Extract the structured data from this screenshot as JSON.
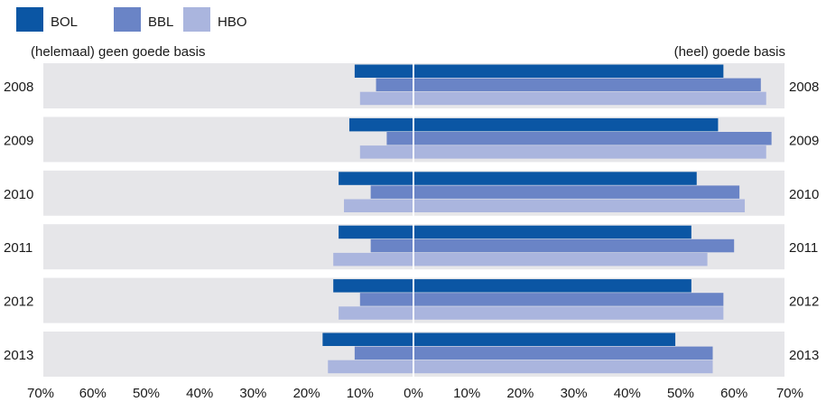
{
  "chart_data": {
    "type": "bar",
    "orientation": "horizontal-diverging",
    "left_label": "(helemaal) geen goede basis",
    "right_label": "(heel) goede basis",
    "categories": [
      "2008",
      "2009",
      "2010",
      "2011",
      "2012",
      "2013"
    ],
    "series": [
      {
        "name": "BOL",
        "color": "#0b56a4",
        "negative": [
          11,
          12,
          14,
          14,
          15,
          17
        ],
        "positive": [
          58,
          57,
          53,
          52,
          52,
          49
        ]
      },
      {
        "name": "BBL",
        "color": "#6a84c6",
        "negative": [
          7,
          5,
          8,
          8,
          10,
          11
        ],
        "positive": [
          65,
          67,
          61,
          60,
          58,
          56
        ]
      },
      {
        "name": "HBO",
        "color": "#aab5de",
        "negative": [
          10,
          10,
          13,
          15,
          14,
          16
        ],
        "positive": [
          66,
          66,
          62,
          55,
          58,
          56
        ]
      }
    ],
    "xticks": [
      "70%",
      "60%",
      "50%",
      "40%",
      "30%",
      "20%",
      "10%",
      "0%",
      "10%",
      "20%",
      "30%",
      "40%",
      "50%",
      "60%",
      "70%"
    ],
    "xlim": [
      -70,
      70
    ],
    "unit": "%",
    "legend_position": "top-left",
    "row_background": "#e6e6e9"
  }
}
